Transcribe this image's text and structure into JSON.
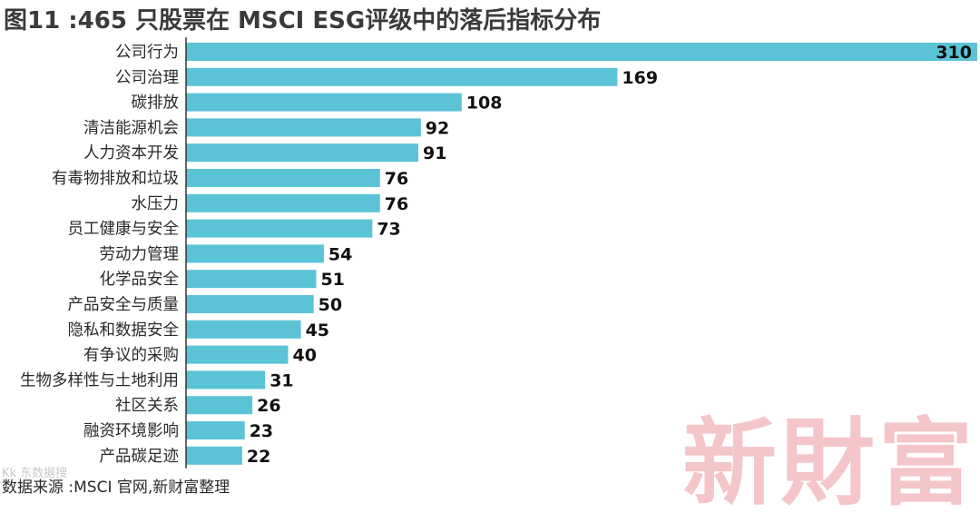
{
  "title": "图11 :465 只股票在 MSCI ESG评级中的落后指标分布",
  "source": "数据来源 :MSCI 官网,新财富整理",
  "watermark": "新財富",
  "corner_mark": "Kk 东数据搜",
  "colors": {
    "bar": "#5bc3d6",
    "axis": "#333333",
    "watermark": "#f2b8bc"
  },
  "chart_data": {
    "type": "bar",
    "orientation": "horizontal",
    "title": "图11 :465 只股票在 MSCI ESG评级中的落后指标分布",
    "xlabel": "",
    "ylabel": "",
    "xlim": [
      0,
      310
    ],
    "grid": false,
    "legend": "none",
    "categories": [
      "公司行为",
      "公司治理",
      "碳排放",
      "清洁能源机会",
      "人力资本开发",
      "有毒物排放和垃圾",
      "水压力",
      "员工健康与安全",
      "劳动力管理",
      "化学品安全",
      "产品安全与质量",
      "隐私和数据安全",
      "有争议的采购",
      "生物多样性与土地利用",
      "社区关系",
      "融资环境影响",
      "产品碳足迹"
    ],
    "values": [
      310,
      169,
      108,
      92,
      91,
      76,
      76,
      73,
      54,
      51,
      50,
      45,
      40,
      31,
      26,
      23,
      22
    ]
  }
}
